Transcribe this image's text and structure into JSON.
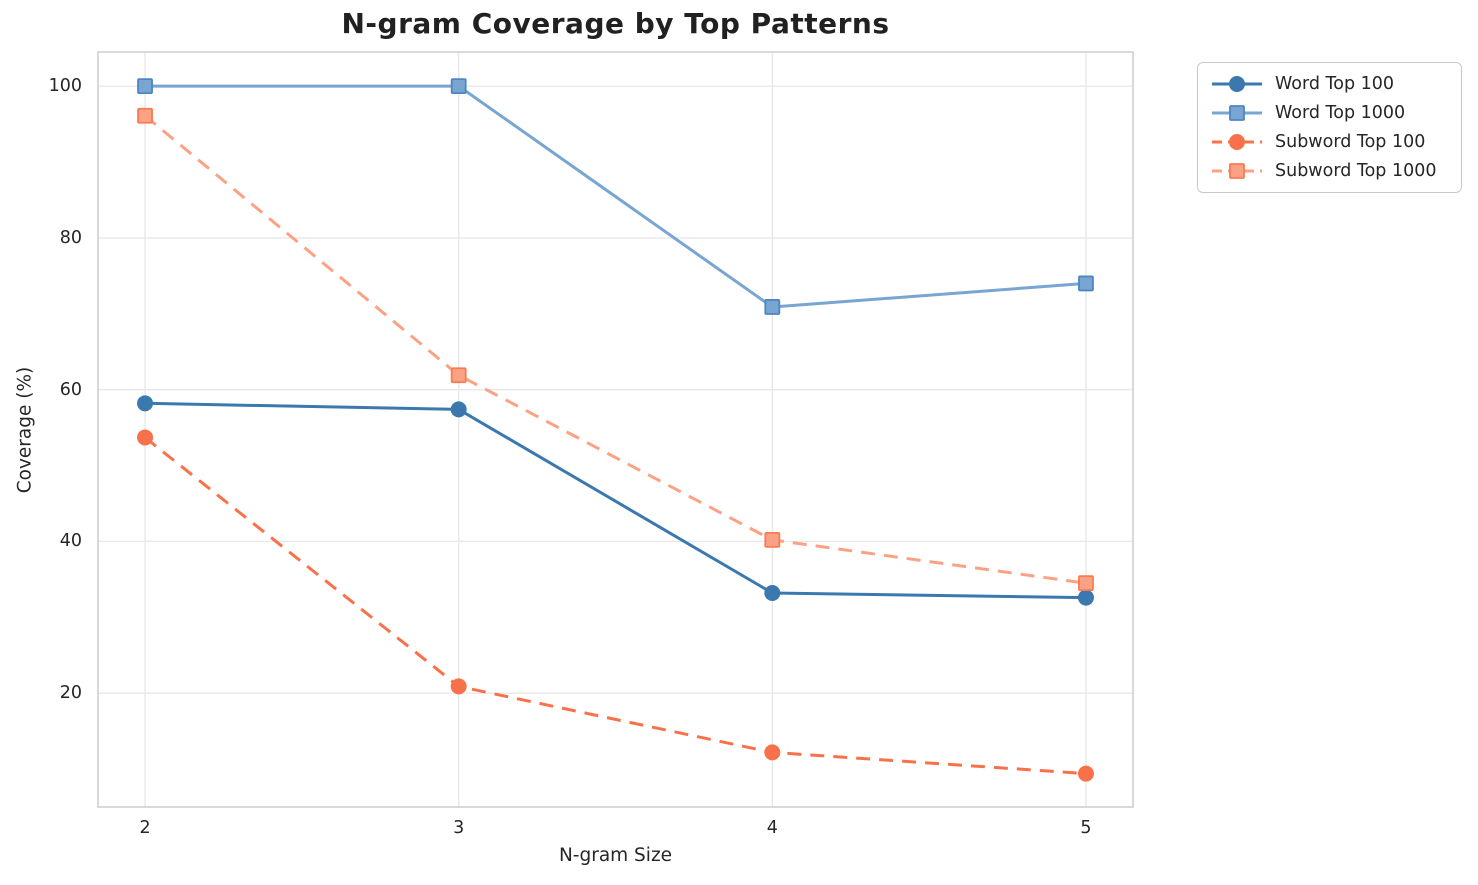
{
  "chart_data": {
    "type": "line",
    "title": "N-gram Coverage by Top Patterns",
    "xlabel": "N-gram Size",
    "ylabel": "Coverage (%)",
    "x": [
      2,
      3,
      4,
      5
    ],
    "x_tick_labels": [
      "2",
      "3",
      "4",
      "5"
    ],
    "y_ticks": [
      20,
      40,
      60,
      80,
      100
    ],
    "y_tick_labels": [
      "20",
      "40",
      "60",
      "80",
      "100"
    ],
    "xlim": [
      1.85,
      5.15
    ],
    "ylim": [
      5,
      104.5
    ],
    "grid": true,
    "legend_position": "upper-right-outside",
    "series": [
      {
        "name": "Word Top 100",
        "color": "#3a78ae",
        "marker": "circle",
        "marker_edge": "#3a78ae",
        "line_style": "solid",
        "values": [
          58.2,
          57.4,
          33.2,
          32.6
        ]
      },
      {
        "name": "Word Top 1000",
        "color": "#78a5d1",
        "marker": "square",
        "marker_edge": "#4d86c0",
        "line_style": "solid",
        "values": [
          100,
          100,
          70.9,
          74.0
        ]
      },
      {
        "name": "Subword Top 100",
        "color": "#f9714b",
        "marker": "circle",
        "marker_edge": "#f9714b",
        "line_style": "dashed",
        "values": [
          53.7,
          20.9,
          12.2,
          9.4
        ]
      },
      {
        "name": "Subword Top 1000",
        "color": "#fba285",
        "marker": "square",
        "marker_edge": "#f87b54",
        "line_style": "dashed",
        "values": [
          96.1,
          61.9,
          40.2,
          34.5
        ]
      }
    ],
    "colors": {
      "text": "#262626",
      "grid": "#e8e8e8",
      "spine": "#c9c9c9",
      "background": "#ffffff"
    }
  }
}
